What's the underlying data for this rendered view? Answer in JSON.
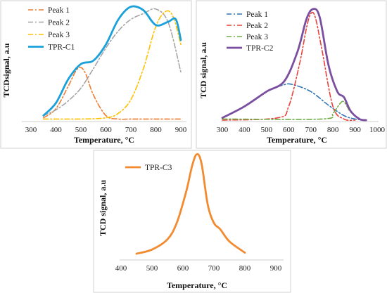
{
  "chart_data": [
    {
      "type": "line",
      "id": "c1",
      "xlabel": "Temperature, °C",
      "ylabel": "TCDsignal, a.u",
      "xticks": [
        300,
        400,
        500,
        600,
        700,
        800,
        900
      ],
      "xlim": [
        300,
        900
      ],
      "ylim": [
        0,
        1.0
      ],
      "legend_position": "top-left",
      "series": [
        {
          "name": "Peak 1",
          "color": "#ed7d31",
          "style": "dashdot",
          "x": [
            350,
            400,
            450,
            480,
            500,
            520,
            550,
            600,
            650,
            700,
            800,
            900
          ],
          "y": [
            0.02,
            0.1,
            0.3,
            0.43,
            0.46,
            0.4,
            0.22,
            0.04,
            0.01,
            0.01,
            0.01,
            0.01
          ]
        },
        {
          "name": "Peak 2",
          "color": "#a5a5a5",
          "style": "dashdot",
          "x": [
            350,
            400,
            450,
            500,
            550,
            600,
            650,
            700,
            750,
            800,
            850,
            900
          ],
          "y": [
            0.04,
            0.09,
            0.17,
            0.28,
            0.45,
            0.63,
            0.78,
            0.88,
            0.93,
            0.97,
            0.85,
            0.42
          ]
        },
        {
          "name": "Peak 3",
          "color": "#ffc000",
          "style": "dashdot",
          "x": [
            350,
            500,
            600,
            650,
            700,
            750,
            800,
            840,
            870,
            900
          ],
          "y": [
            0.01,
            0.01,
            0.02,
            0.06,
            0.18,
            0.45,
            0.82,
            0.95,
            0.9,
            0.66
          ]
        },
        {
          "name": "TPR-C1",
          "color": "#1aa0db",
          "style": "solid",
          "x": [
            350,
            400,
            450,
            500,
            550,
            600,
            650,
            700,
            750,
            800,
            850,
            880,
            900
          ],
          "y": [
            0.04,
            0.15,
            0.36,
            0.49,
            0.52,
            0.66,
            0.88,
            0.99,
            0.96,
            0.83,
            0.86,
            0.88,
            0.7
          ]
        }
      ]
    },
    {
      "type": "line",
      "id": "c2",
      "xlabel": "Temperature, °C",
      "ylabel": "TCD signal, a.u",
      "xticks": [
        300,
        400,
        500,
        600,
        700,
        800,
        900,
        1000
      ],
      "xlim": [
        300,
        1000
      ],
      "ylim": [
        0,
        1.0
      ],
      "legend_position": "top-left",
      "series": [
        {
          "name": "Peak 1",
          "color": "#2e75b6",
          "style": "dashdot",
          "x": [
            300,
            400,
            500,
            580,
            620,
            700,
            780,
            850,
            900,
            950
          ],
          "y": [
            0.02,
            0.12,
            0.25,
            0.31,
            0.31,
            0.25,
            0.13,
            0.04,
            0.01,
            0.0
          ]
        },
        {
          "name": "Peak 2",
          "color": "#e8413a",
          "style": "dashdot",
          "x": [
            300,
            550,
            600,
            650,
            680,
            700,
            720,
            750,
            800,
            850,
            900
          ],
          "y": [
            0.0,
            0.02,
            0.12,
            0.5,
            0.8,
            0.93,
            0.9,
            0.62,
            0.12,
            0.01,
            0.0
          ]
        },
        {
          "name": "Peak 3",
          "color": "#70ad47",
          "style": "dashdot",
          "x": [
            300,
            750,
            800,
            830,
            850,
            880,
            920
          ],
          "y": [
            0.01,
            0.01,
            0.06,
            0.14,
            0.16,
            0.07,
            0.01
          ]
        },
        {
          "name": "TPR-C2",
          "color": "#7b4fa0",
          "style": "solid",
          "x": [
            300,
            400,
            500,
            580,
            640,
            680,
            710,
            740,
            780,
            820,
            850,
            880,
            920,
            950
          ],
          "y": [
            0.02,
            0.12,
            0.25,
            0.34,
            0.6,
            0.88,
            0.97,
            0.9,
            0.48,
            0.25,
            0.2,
            0.08,
            0.01,
            0.0
          ]
        }
      ]
    },
    {
      "type": "line",
      "id": "c3",
      "xlabel": "Temperature, °C",
      "ylabel": "TCD signal, a.u",
      "xticks": [
        400,
        500,
        600,
        700,
        800,
        900
      ],
      "xlim": [
        400,
        900
      ],
      "ylim": [
        0,
        1.0
      ],
      "legend_position": "top-left",
      "series": [
        {
          "name": "TPR-C3",
          "color": "#f28a30",
          "style": "solid",
          "x": [
            450,
            500,
            550,
            580,
            610,
            630,
            645,
            660,
            680,
            700,
            720,
            750,
            800
          ],
          "y": [
            0.02,
            0.06,
            0.16,
            0.32,
            0.62,
            0.88,
            0.99,
            0.9,
            0.5,
            0.32,
            0.26,
            0.14,
            0.03
          ]
        }
      ]
    }
  ]
}
